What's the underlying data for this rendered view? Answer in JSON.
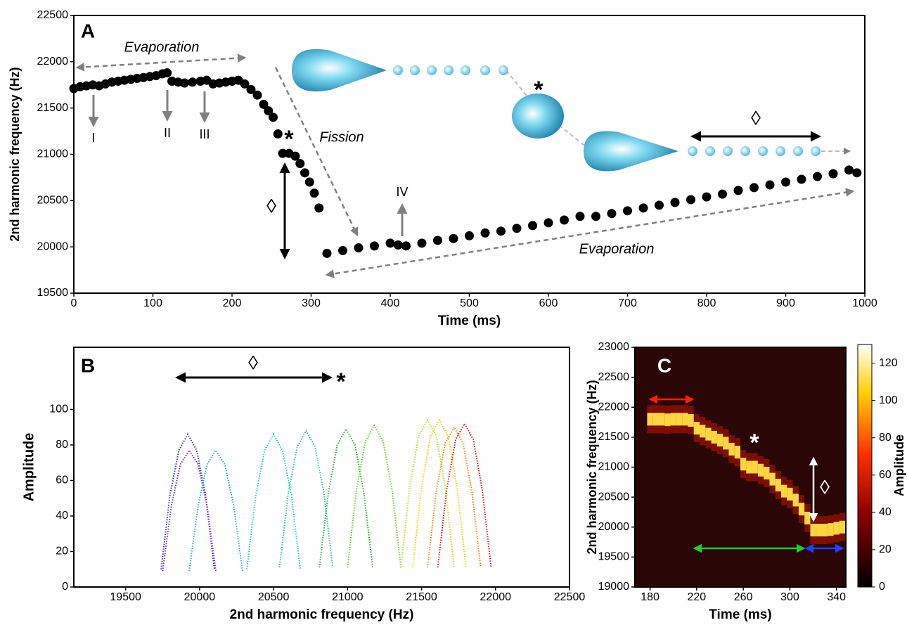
{
  "chart_data": [
    {
      "type": "scatter",
      "panel": "A",
      "x_label": "Time (ms)",
      "y_label": "2nd harmonic frequency (Hz)",
      "xlim": [
        0,
        1000
      ],
      "xticks": [
        0,
        100,
        200,
        300,
        400,
        500,
        600,
        700,
        800,
        900,
        1000
      ],
      "ylim": [
        19500,
        22500
      ],
      "yticks": [
        19500,
        20000,
        20500,
        21000,
        21500,
        22000,
        22500
      ],
      "series": [
        {
          "color": "#000000",
          "x": [
            0,
            8,
            16,
            24,
            32,
            40,
            48,
            56,
            64,
            72,
            80,
            88,
            96,
            104,
            112,
            118,
            124,
            132,
            140,
            150,
            160,
            168,
            176,
            184,
            192,
            200,
            208,
            216,
            224,
            232,
            240,
            246,
            252,
            258,
            264,
            272,
            280,
            286,
            292,
            298,
            304,
            310
          ],
          "values": [
            21710,
            21730,
            21740,
            21750,
            21740,
            21760,
            21780,
            21790,
            21800,
            21810,
            21820,
            21830,
            21840,
            21850,
            21870,
            21880,
            21790,
            21780,
            21770,
            21780,
            21790,
            21800,
            21760,
            21770,
            21780,
            21790,
            21800,
            21760,
            21700,
            21640,
            21540,
            21470,
            21400,
            21220,
            21010,
            21010,
            20980,
            20900,
            20800,
            20700,
            20580,
            20420
          ]
        },
        {
          "color": "#000000",
          "x": [
            320,
            340,
            360,
            380,
            400,
            410,
            420,
            440,
            460,
            480,
            500,
            520,
            540,
            560,
            580,
            600,
            620,
            640,
            660,
            680,
            700,
            720,
            740,
            760,
            780,
            800,
            820,
            840,
            860,
            880,
            900,
            920,
            940,
            960,
            980,
            990
          ],
          "values": [
            19930,
            19960,
            19990,
            20010,
            20040,
            20020,
            20010,
            20040,
            20070,
            20090,
            20120,
            20150,
            20170,
            20200,
            20230,
            20260,
            20290,
            20330,
            20330,
            20360,
            20390,
            20420,
            20450,
            20480,
            20510,
            20540,
            20570,
            20610,
            20640,
            20670,
            20700,
            20730,
            20760,
            20790,
            20830,
            20800
          ]
        }
      ],
      "annotations": [
        "Evaporation",
        "I",
        "II",
        "III",
        "*",
        "◊",
        "Fission",
        "IV",
        "Evaporation",
        "*",
        "◊"
      ]
    },
    {
      "type": "line",
      "panel": "B",
      "x_label": "2nd harmonic frequency (Hz)",
      "y_label": "Amplitude",
      "xlim": [
        19150,
        22500
      ],
      "xticks": [
        19500,
        20000,
        20500,
        21000,
        21500,
        22000,
        22500
      ],
      "ylim": [
        0,
        135
      ],
      "yticks": [
        0,
        20,
        40,
        60,
        80,
        100
      ],
      "series": [
        {
          "color": "#2a3cd0",
          "x": [
            19740,
            19800,
            19860,
            19920,
            19980,
            20040,
            20100
          ],
          "values": [
            10,
            52,
            77,
            86,
            77,
            52,
            10
          ]
        },
        {
          "color": "#7a2ad0",
          "x": [
            19750,
            19810,
            19870,
            19930,
            19990,
            20050,
            20110
          ],
          "values": [
            9,
            46,
            69,
            77,
            69,
            46,
            9
          ]
        },
        {
          "color": "#2aa8e0",
          "x": [
            19930,
            19990,
            20050,
            20110,
            20170,
            20230,
            20290
          ],
          "values": [
            9,
            46,
            69,
            77,
            69,
            46,
            9
          ]
        },
        {
          "color": "#20c8d0",
          "x": [
            20320,
            20380,
            20440,
            20500,
            20560,
            20620,
            20680
          ],
          "values": [
            10,
            52,
            77,
            86,
            77,
            52,
            10
          ]
        },
        {
          "color": "#20c0a0",
          "x": [
            20540,
            20600,
            20660,
            20720,
            20780,
            20840,
            20900
          ],
          "values": [
            11,
            53,
            79,
            88,
            79,
            53,
            11
          ]
        },
        {
          "color": "#20b030",
          "x": [
            20810,
            20870,
            20930,
            20990,
            21050,
            21110,
            21170
          ],
          "values": [
            11,
            53,
            80,
            89,
            80,
            53,
            11
          ]
        },
        {
          "color": "#60d020",
          "x": [
            21000,
            21060,
            21120,
            21180,
            21240,
            21300,
            21360
          ],
          "values": [
            11,
            55,
            82,
            91,
            82,
            55,
            11
          ]
        },
        {
          "color": "#b0e020",
          "x": [
            21360,
            21420,
            21480,
            21540,
            21600,
            21660,
            21720
          ],
          "values": [
            11,
            56,
            85,
            94,
            85,
            56,
            11
          ]
        },
        {
          "color": "#f0d000",
          "x": [
            21440,
            21500,
            21560,
            21620,
            21680,
            21740,
            21800
          ],
          "values": [
            11,
            56,
            85,
            94,
            85,
            56,
            11
          ]
        },
        {
          "color": "#ff8000",
          "x": [
            21540,
            21600,
            21660,
            21720,
            21780,
            21840,
            21900
          ],
          "values": [
            11,
            54,
            81,
            90,
            81,
            54,
            11
          ]
        },
        {
          "color": "#e01010",
          "x": [
            21610,
            21670,
            21730,
            21790,
            21850,
            21910,
            21970
          ],
          "values": [
            11,
            55,
            83,
            92,
            83,
            55,
            11
          ]
        }
      ],
      "annotations": [
        "◊",
        "*"
      ]
    },
    {
      "type": "heatmap",
      "panel": "C",
      "x_label": "Time (ms)",
      "y_label": "2nd harmonic frequency (Hz)",
      "xlim": [
        167,
        348
      ],
      "xticks": [
        180,
        220,
        260,
        300,
        340
      ],
      "ylim": [
        19000,
        23000
      ],
      "yticks": [
        19000,
        19500,
        20000,
        20500,
        21000,
        21500,
        22000,
        22500,
        23000
      ],
      "x": [
        180,
        185,
        190,
        195,
        200,
        205,
        210,
        215,
        220,
        225,
        230,
        235,
        240,
        245,
        250,
        255,
        260,
        265,
        270,
        275,
        280,
        285,
        290,
        295,
        300,
        305,
        310,
        315,
        320,
        325,
        330,
        335,
        340,
        345
      ],
      "values": [
        21800,
        21800,
        21800,
        21790,
        21800,
        21800,
        21800,
        21780,
        21650,
        21600,
        21550,
        21500,
        21450,
        21400,
        21300,
        21250,
        21050,
        21000,
        21000,
        20950,
        20900,
        20800,
        20700,
        20600,
        20550,
        20450,
        20300,
        20150,
        19950,
        19950,
        19950,
        19960,
        19980,
        20000
      ],
      "colorbar": {
        "label": "Amplitude",
        "lim": [
          0,
          130
        ],
        "ticks": [
          0,
          20,
          40,
          60,
          80,
          100,
          120
        ]
      },
      "annotations": [
        "*",
        "◊"
      ]
    }
  ]
}
